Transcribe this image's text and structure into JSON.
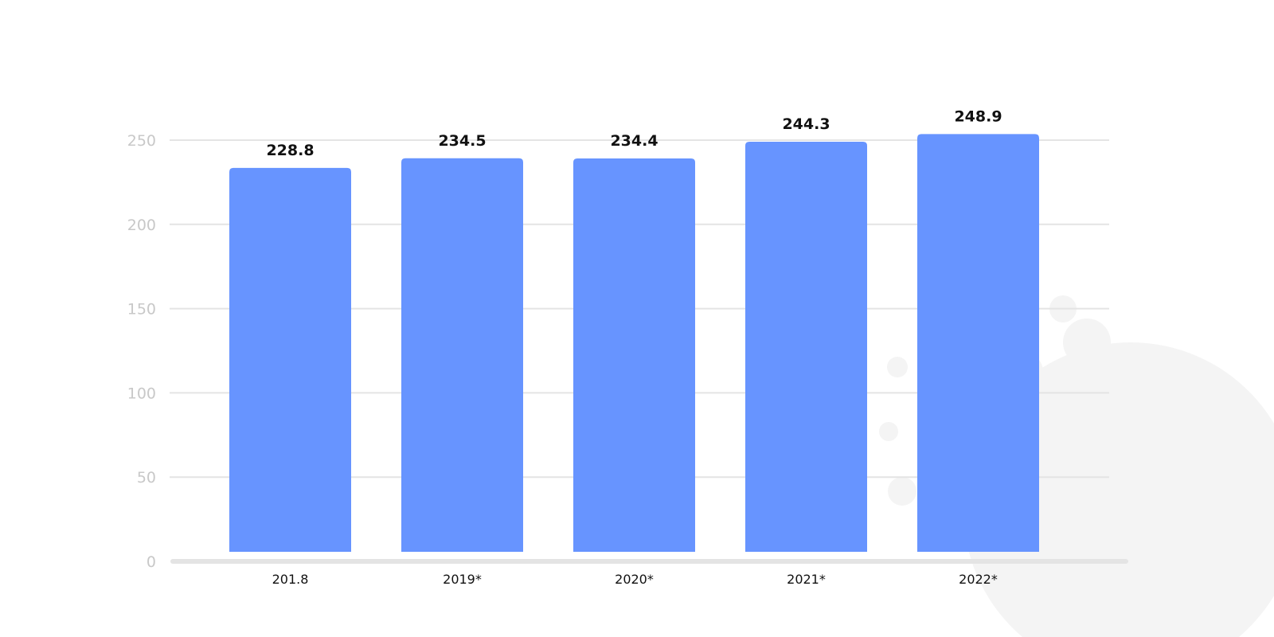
{
  "chart_data": {
    "type": "bar",
    "categories": [
      "201.8",
      "2019*",
      "2020*",
      "2021*",
      "2022*"
    ],
    "values": [
      228.8,
      234.5,
      234.4,
      244.3,
      248.9
    ],
    "title": "",
    "xlabel": "",
    "ylabel": "",
    "ylim": [
      0,
      250
    ],
    "yticks": [
      0,
      50,
      100,
      150,
      200,
      250
    ],
    "grid": true,
    "bar_color": "#6794ff",
    "data_labels": [
      "228.8",
      "234.5",
      "234.4",
      "244.3",
      "248.9"
    ]
  }
}
